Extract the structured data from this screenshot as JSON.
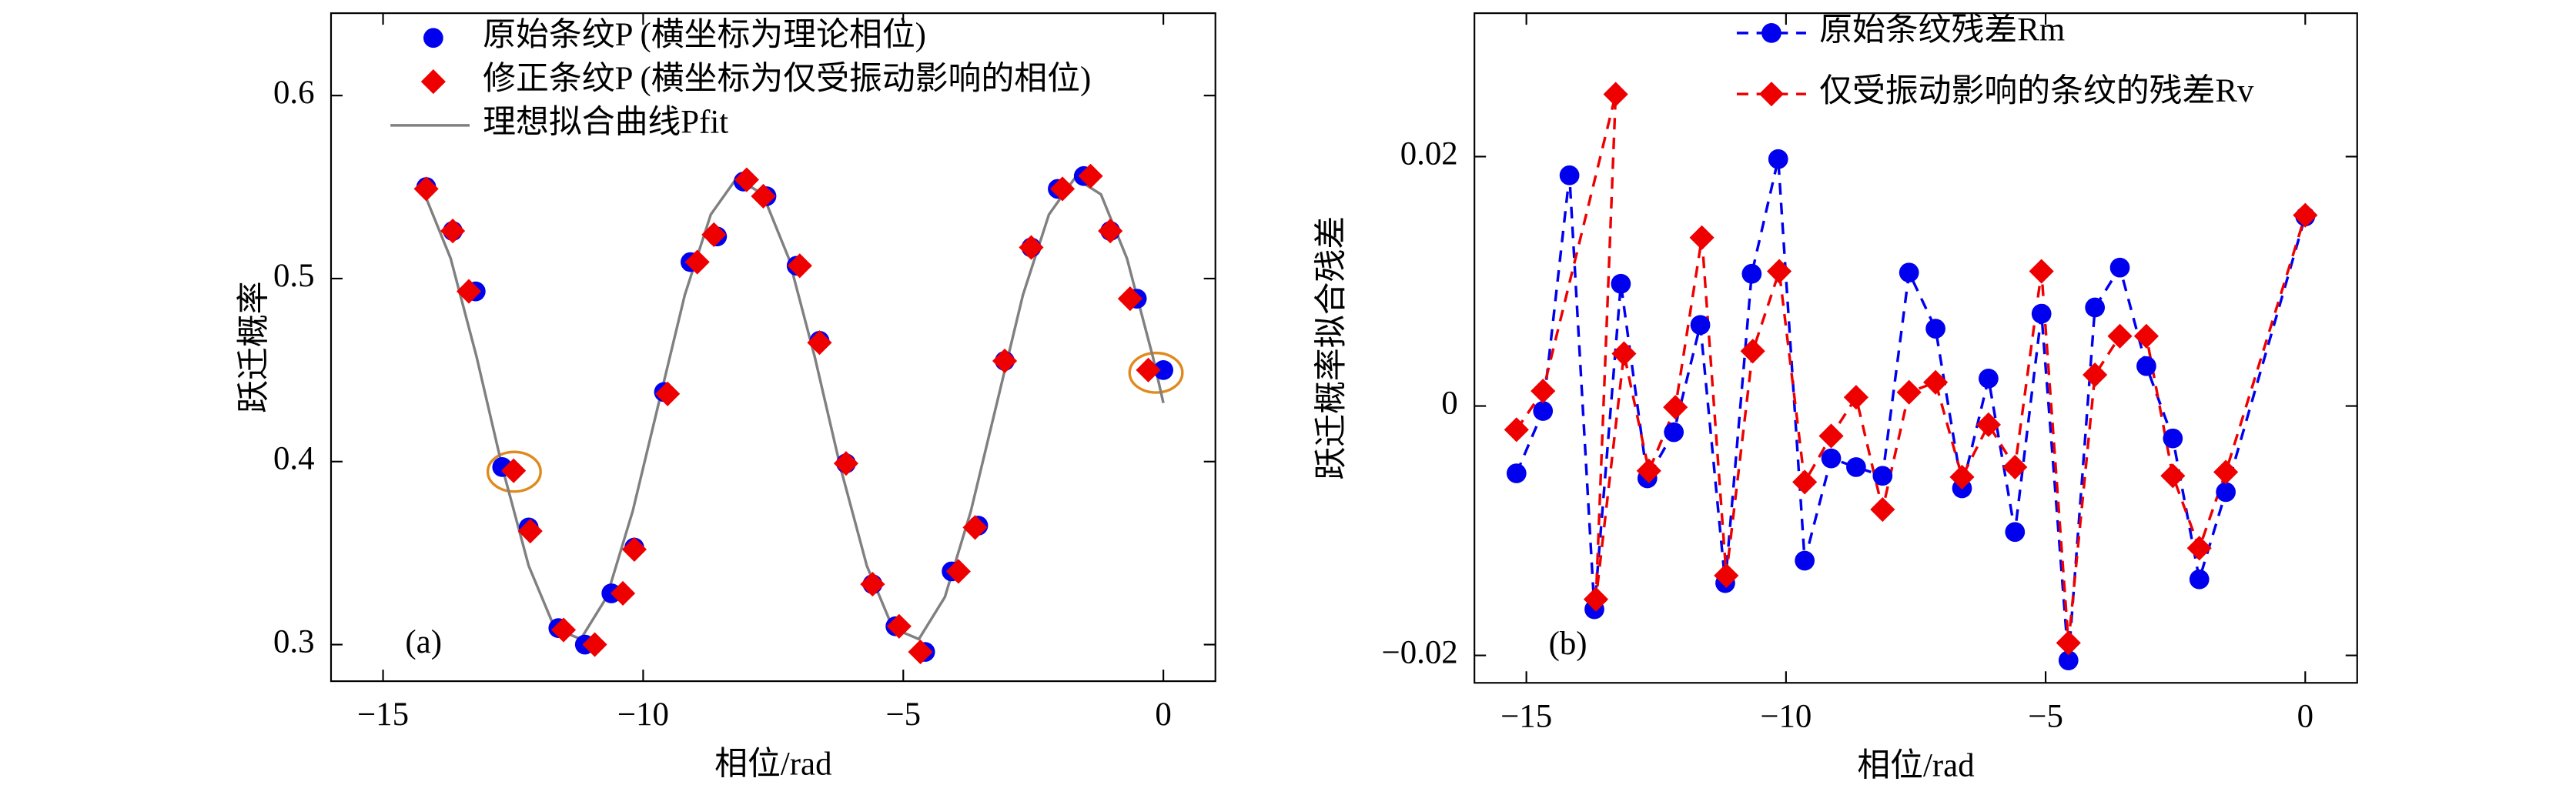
{
  "chart_data": [
    {
      "type": "scatter",
      "xlabel": "相位/rad",
      "ylabel": "跃迁概率",
      "annotation": "(a)",
      "xlim": [
        -16,
        1
      ],
      "ylim": [
        0.28,
        0.645
      ],
      "xticks": [
        {
          "value": -15,
          "label": "−15"
        },
        {
          "value": -10,
          "label": "−10"
        },
        {
          "value": -5,
          "label": "−5"
        },
        0
      ],
      "yticks": [
        0.3,
        0.4,
        0.5,
        0.6
      ],
      "legend": "upper left",
      "series": [
        {
          "name": "原始条纹P (横坐标为理论相位)",
          "color": "#0000ee",
          "style": "markers",
          "marker": "circle",
          "x": [
            -14.17,
            -13.66,
            -13.22,
            -12.71,
            -12.2,
            -11.63,
            -11.12,
            -10.61,
            -10.17,
            -9.6,
            -9.09,
            -8.58,
            -8.07,
            -7.63,
            -7.05,
            -6.61,
            -6.1,
            -5.59,
            -5.15,
            -4.58,
            -4.07,
            -3.56,
            -3.05,
            -2.54,
            -2.03,
            -1.53,
            -1.02,
            -0.51,
            0
          ],
          "values": [
            0.55,
            0.526,
            0.493,
            0.397,
            0.364,
            0.309,
            0.3,
            0.328,
            0.353,
            0.438,
            0.509,
            0.523,
            0.553,
            0.545,
            0.507,
            0.466,
            0.399,
            0.333,
            0.31,
            0.296,
            0.34,
            0.365,
            0.455,
            0.517,
            0.549,
            0.556,
            0.526,
            0.489,
            0.45
          ]
        },
        {
          "name": "修正条纹P (横坐标为仅受振动影响的相位)",
          "color": "#ee0000",
          "style": "markers",
          "marker": "diamond",
          "x": [
            -14.17,
            -13.66,
            -13.35,
            -12.49,
            -12.17,
            -11.53,
            -10.93,
            -10.39,
            -10.17,
            -9.53,
            -8.96,
            -8.64,
            -8.01,
            -7.69,
            -6.99,
            -6.61,
            -6.1,
            -5.59,
            -5.08,
            -4.67,
            -3.94,
            -3.62,
            -3.05,
            -2.54,
            -1.94,
            -1.4,
            -1.02,
            -0.64,
            -0.29
          ],
          "values": [
            0.549,
            0.526,
            0.493,
            0.395,
            0.362,
            0.308,
            0.3,
            0.328,
            0.352,
            0.437,
            0.509,
            0.524,
            0.554,
            0.545,
            0.507,
            0.465,
            0.399,
            0.333,
            0.31,
            0.296,
            0.34,
            0.364,
            0.455,
            0.517,
            0.549,
            0.556,
            0.526,
            0.489,
            0.45
          ]
        },
        {
          "name": "理想拟合曲线Pfit",
          "color": "#808080",
          "style": "line",
          "x": [
            -14.2,
            -13.7,
            -13.2,
            -12.7,
            -12.2,
            -11.7,
            -11.2,
            -10.7,
            -10.2,
            -9.7,
            -9.2,
            -8.7,
            -8.2,
            -7.7,
            -7.2,
            -6.7,
            -6.2,
            -5.7,
            -5.2,
            -4.7,
            -4.2,
            -3.7,
            -3.2,
            -2.7,
            -2.2,
            -1.7,
            -1.2,
            -0.7,
            -0.2,
            0
          ],
          "values": [
            0.546,
            0.511,
            0.457,
            0.396,
            0.343,
            0.309,
            0.303,
            0.326,
            0.373,
            0.432,
            0.491,
            0.535,
            0.555,
            0.546,
            0.511,
            0.457,
            0.396,
            0.343,
            0.309,
            0.303,
            0.326,
            0.373,
            0.432,
            0.491,
            0.535,
            0.555,
            0.546,
            0.511,
            0.457,
            0.432
          ]
        }
      ]
    },
    {
      "type": "line",
      "xlabel": "相位/rad",
      "ylabel": "跃迁概率拟合残差",
      "annotation": "(b)",
      "xlim": [
        -16,
        1
      ],
      "ylim": [
        -0.0222,
        0.0315
      ],
      "xticks": [
        {
          "value": -15,
          "label": "−15"
        },
        {
          "value": -10,
          "label": "−10"
        },
        {
          "value": -5,
          "label": "−5"
        },
        0
      ],
      "yticks": [
        {
          "value": -0.02,
          "label": "−0.02"
        },
        0,
        0.02
      ],
      "legend": "upper center",
      "series": [
        {
          "name": "原始条纹残差Rm",
          "color": "#0000ee",
          "marker": "circle",
          "dashed": true,
          "x": [
            -15.19,
            -14.68,
            -14.17,
            -13.69,
            -13.18,
            -12.67,
            -12.16,
            -11.65,
            -11.17,
            -10.66,
            -10.15,
            -9.64,
            -9.13,
            -8.65,
            -8.14,
            -7.63,
            -7.12,
            -6.61,
            -6.1,
            -5.59,
            -5.08,
            -4.56,
            -4.05,
            -3.57,
            -3.06,
            -2.55,
            -2.04,
            -1.53,
            0
          ],
          "values": [
            -0.0054,
            -0.0004,
            0.0185,
            -0.0163,
            0.0098,
            -0.0058,
            -0.0021,
            0.0065,
            -0.0142,
            0.0106,
            0.0198,
            -0.0124,
            -0.0042,
            -0.0049,
            -0.0056,
            0.0107,
            0.0062,
            -0.0066,
            0.0022,
            -0.0101,
            0.0074,
            -0.0204,
            0.0079,
            0.0111,
            0.0032,
            -0.0026,
            -0.0139,
            -0.0069,
            0.0152
          ]
        },
        {
          "name": "仅受振动影响的条纹的残差Rv",
          "color": "#ee0000",
          "marker": "diamond",
          "dashed": true,
          "x": [
            -15.19,
            -14.68,
            -13.28,
            -13.66,
            -13.12,
            -12.64,
            -12.13,
            -11.62,
            -11.15,
            -10.64,
            -10.13,
            -9.64,
            -9.13,
            -8.65,
            -8.14,
            -7.63,
            -7.12,
            -6.61,
            -6.1,
            -5.59,
            -5.08,
            -4.56,
            -4.05,
            -3.57,
            -3.06,
            -2.55,
            -2.04,
            -1.53,
            0
          ],
          "values": [
            -0.0019,
            0.0012,
            0.025,
            -0.0155,
            0.0042,
            -0.0052,
            -0.0001,
            0.0135,
            -0.0136,
            0.0044,
            0.0108,
            -0.0061,
            -0.0024,
            0.0007,
            -0.0083,
            0.0011,
            0.0019,
            -0.0057,
            -0.0015,
            -0.0049,
            0.0108,
            -0.019,
            0.0025,
            0.0056,
            0.0056,
            -0.0056,
            -0.0114,
            -0.0053,
            0.0153
          ]
        }
      ]
    }
  ]
}
